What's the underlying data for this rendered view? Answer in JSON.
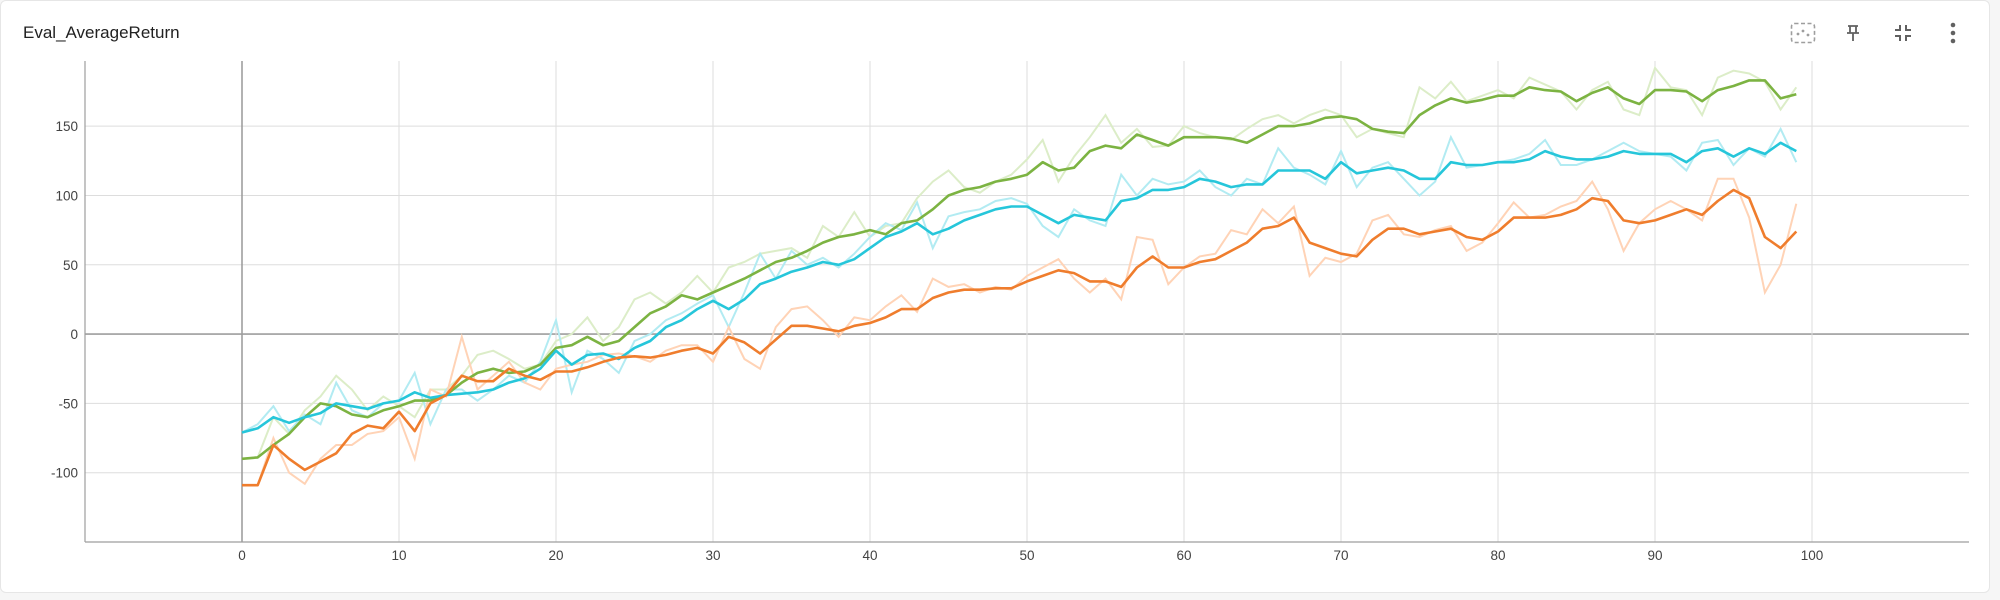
{
  "card": {
    "title": "Eval_AverageReturn",
    "toolbar": [
      {
        "name": "fit-domain-button",
        "icon": "fit-to-data-icon"
      },
      {
        "name": "pin-button",
        "icon": "pin-icon"
      },
      {
        "name": "collapse-button",
        "icon": "collapse-icon"
      },
      {
        "name": "more-options-button",
        "icon": "more-vertical-icon"
      }
    ]
  },
  "colors": {
    "axis": "#9e9e9e",
    "grid": "#dddddd",
    "tick_text": "#424242",
    "icon": "#616161"
  },
  "chart_data": {
    "type": "line",
    "title": "Eval_AverageReturn",
    "xlabel": "",
    "ylabel": "",
    "xlim": [
      -10,
      110
    ],
    "ylim": [
      -150,
      197
    ],
    "x_ticks": [
      0,
      10,
      20,
      30,
      40,
      50,
      60,
      70,
      80,
      90,
      100
    ],
    "y_ticks": [
      -100,
      -50,
      0,
      50,
      100,
      150
    ],
    "grid": true,
    "x": [
      0,
      1,
      2,
      3,
      4,
      5,
      6,
      7,
      8,
      9,
      10,
      11,
      12,
      13,
      14,
      15,
      16,
      17,
      18,
      19,
      20,
      21,
      22,
      23,
      24,
      25,
      26,
      27,
      28,
      29,
      30,
      31,
      32,
      33,
      34,
      35,
      36,
      37,
      38,
      39,
      40,
      41,
      42,
      43,
      44,
      45,
      46,
      47,
      48,
      49,
      50,
      51,
      52,
      53,
      54,
      55,
      56,
      57,
      58,
      59,
      60,
      61,
      62,
      63,
      64,
      65,
      66,
      67,
      68,
      69,
      70,
      71,
      72,
      73,
      74,
      75,
      76,
      77,
      78,
      79,
      80,
      81,
      82,
      83,
      84,
      85,
      86,
      87,
      88,
      89,
      90,
      91,
      92,
      93,
      94,
      95,
      96,
      97,
      98,
      99
    ],
    "series": [
      {
        "color": "#7cb342",
        "raw_color": "#dcedc8",
        "values": [
          -90,
          -89,
          -80,
          -72,
          -60,
          -50,
          -52,
          -58,
          -60,
          -55,
          -52,
          -48,
          -48,
          -44,
          -35,
          -28,
          -25,
          -28,
          -27,
          -22,
          -10,
          -8,
          -2,
          -8,
          -5,
          5,
          15,
          20,
          28,
          25,
          30,
          35,
          40,
          46,
          52,
          55,
          60,
          66,
          70,
          72,
          75,
          72,
          80,
          82,
          90,
          100,
          104,
          106,
          110,
          112,
          115,
          124,
          118,
          120,
          132,
          136,
          134,
          144,
          140,
          136,
          142,
          142,
          142,
          141,
          138,
          144,
          150,
          150,
          152,
          156,
          157,
          155,
          148,
          146,
          145,
          158,
          165,
          170,
          167,
          169,
          172,
          172,
          178,
          176,
          175,
          168,
          174,
          178,
          170,
          166,
          176,
          176,
          175,
          168,
          176,
          179,
          183,
          183,
          170,
          173
        ],
        "raw_values": [
          -90,
          -89,
          -60,
          -72,
          -55,
          -45,
          -30,
          -40,
          -55,
          -45,
          -52,
          -60,
          -40,
          -40,
          -30,
          -15,
          -12,
          -18,
          -25,
          -22,
          -5,
          0,
          12,
          -5,
          5,
          25,
          30,
          22,
          30,
          42,
          30,
          48,
          52,
          58,
          60,
          62,
          55,
          78,
          70,
          88,
          70,
          78,
          80,
          98,
          110,
          118,
          106,
          102,
          110,
          115,
          126,
          140,
          110,
          128,
          142,
          158,
          138,
          148,
          135,
          136,
          150,
          145,
          142,
          140,
          148,
          155,
          158,
          152,
          158,
          162,
          158,
          142,
          148,
          145,
          142,
          178,
          170,
          182,
          168,
          172,
          176,
          170,
          185,
          180,
          175,
          162,
          176,
          182,
          162,
          158,
          192,
          178,
          176,
          158,
          185,
          190,
          188,
          182,
          162,
          178
        ]
      },
      {
        "color": "#26c6da",
        "raw_color": "#b2ebf2",
        "values": [
          -71,
          -68,
          -60,
          -64,
          -60,
          -57,
          -50,
          -52,
          -54,
          -50,
          -48,
          -42,
          -46,
          -44,
          -43,
          -42,
          -40,
          -35,
          -32,
          -25,
          -12,
          -22,
          -15,
          -14,
          -18,
          -10,
          -5,
          5,
          10,
          18,
          24,
          18,
          25,
          36,
          40,
          45,
          48,
          52,
          50,
          54,
          62,
          70,
          74,
          80,
          72,
          76,
          82,
          86,
          90,
          92,
          92,
          86,
          80,
          86,
          84,
          82,
          96,
          98,
          104,
          104,
          106,
          112,
          110,
          106,
          108,
          108,
          118,
          118,
          118,
          112,
          124,
          116,
          118,
          120,
          118,
          112,
          112,
          124,
          122,
          122,
          124,
          124,
          126,
          132,
          128,
          126,
          126,
          128,
          132,
          130,
          130,
          130,
          124,
          132,
          134,
          128,
          134,
          130,
          138,
          132
        ],
        "raw_values": [
          -71,
          -65,
          -52,
          -70,
          -58,
          -65,
          -35,
          -55,
          -60,
          -50,
          -48,
          -28,
          -65,
          -40,
          -40,
          -48,
          -40,
          -30,
          -35,
          -20,
          10,
          -42,
          -12,
          -18,
          -28,
          -5,
          0,
          10,
          15,
          22,
          28,
          5,
          30,
          58,
          40,
          60,
          50,
          55,
          48,
          58,
          70,
          80,
          75,
          95,
          62,
          85,
          88,
          90,
          96,
          98,
          94,
          78,
          70,
          90,
          82,
          78,
          115,
          100,
          112,
          108,
          110,
          118,
          106,
          100,
          112,
          108,
          134,
          120,
          115,
          108,
          132,
          106,
          120,
          124,
          112,
          100,
          110,
          142,
          120,
          122,
          124,
          126,
          130,
          140,
          122,
          122,
          126,
          132,
          138,
          132,
          130,
          128,
          118,
          138,
          140,
          122,
          134,
          128,
          148,
          124
        ]
      },
      {
        "color": "#ef7d2d",
        "raw_color": "#ffd3b6",
        "values": [
          -109,
          -109,
          -80,
          -90,
          -98,
          -92,
          -86,
          -72,
          -66,
          -68,
          -56,
          -70,
          -50,
          -44,
          -30,
          -34,
          -34,
          -25,
          -30,
          -33,
          -27,
          -27,
          -24,
          -20,
          -17,
          -16,
          -17,
          -15,
          -12,
          -10,
          -14,
          -2,
          -6,
          -14,
          -4,
          6,
          6,
          4,
          2,
          6,
          8,
          12,
          18,
          18,
          26,
          30,
          32,
          32,
          33,
          33,
          38,
          42,
          46,
          44,
          38,
          38,
          34,
          48,
          56,
          48,
          48,
          52,
          54,
          60,
          66,
          76,
          78,
          84,
          66,
          62,
          58,
          56,
          68,
          76,
          76,
          72,
          74,
          76,
          70,
          68,
          74,
          84,
          84,
          84,
          86,
          90,
          98,
          96,
          82,
          80,
          82,
          86,
          90,
          86,
          96,
          104,
          98,
          70,
          62,
          74
        ],
        "raw_values": [
          -109,
          -109,
          -75,
          -100,
          -108,
          -90,
          -80,
          -80,
          -72,
          -70,
          -60,
          -90,
          -40,
          -45,
          -2,
          -40,
          -30,
          -20,
          -35,
          -40,
          -25,
          -22,
          -20,
          -15,
          -14,
          -16,
          -20,
          -12,
          -8,
          -8,
          -20,
          5,
          -18,
          -25,
          5,
          18,
          20,
          10,
          -2,
          12,
          10,
          20,
          28,
          16,
          40,
          34,
          36,
          30,
          34,
          32,
          42,
          48,
          54,
          40,
          30,
          40,
          25,
          70,
          68,
          36,
          48,
          56,
          58,
          75,
          72,
          90,
          80,
          92,
          42,
          55,
          52,
          58,
          82,
          86,
          72,
          70,
          75,
          78,
          60,
          66,
          80,
          95,
          84,
          86,
          92,
          96,
          110,
          90,
          60,
          80,
          90,
          96,
          90,
          82,
          112,
          112,
          84,
          30,
          50,
          94
        ]
      }
    ]
  }
}
